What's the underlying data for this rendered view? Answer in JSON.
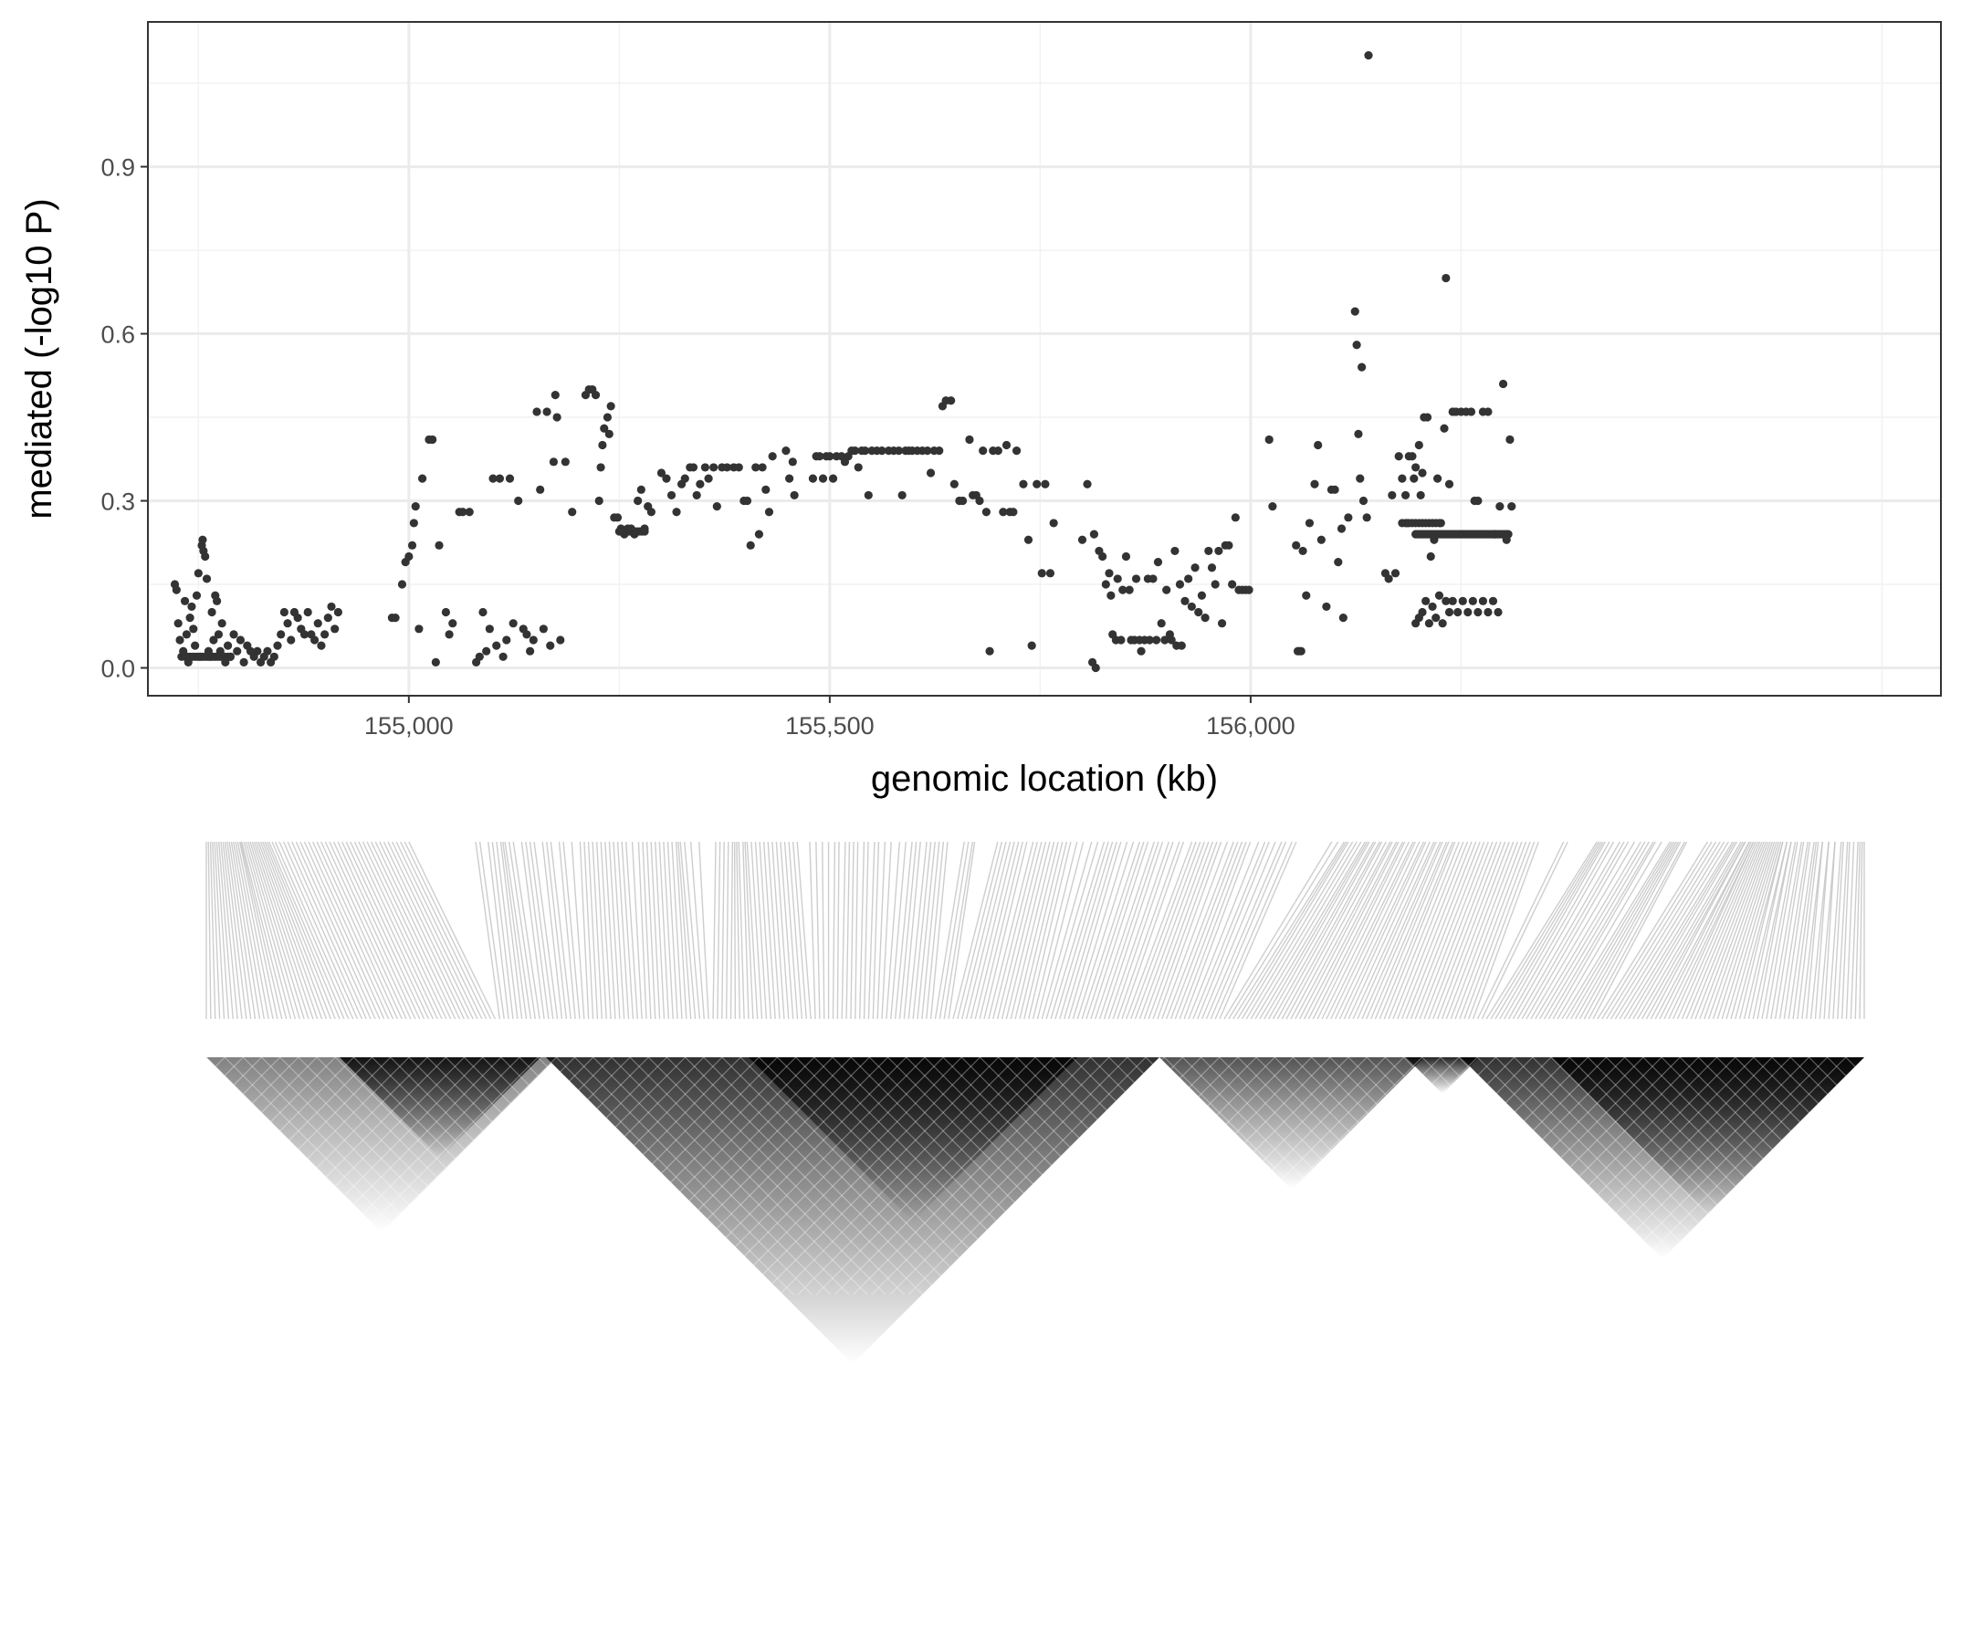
{
  "chart_data": {
    "type": "scatter",
    "xlabel": "genomic location (kb)",
    "ylabel": "mediated (-log10 P)",
    "xlim": [
      154690,
      156820
    ],
    "ylim": [
      -0.05,
      1.16
    ],
    "x_ticks": [
      155000,
      155500,
      156000
    ],
    "x_tick_labels": [
      "155,000",
      "155,500",
      "156,000"
    ],
    "y_ticks": [
      0.0,
      0.3,
      0.6,
      0.9
    ],
    "y_tick_labels": [
      "0.0",
      "0.3",
      "0.6",
      "0.9"
    ],
    "grid": true,
    "point_color": "#333333",
    "points": [
      [
        154722,
        0.15
      ],
      [
        154724,
        0.14
      ],
      [
        154726,
        0.08
      ],
      [
        154728,
        0.05
      ],
      [
        154730,
        0.02
      ],
      [
        154732,
        0.03
      ],
      [
        154734,
        0.12
      ],
      [
        154736,
        0.06
      ],
      [
        154738,
        0.01
      ],
      [
        154740,
        0.09
      ],
      [
        154742,
        0.11
      ],
      [
        154744,
        0.07
      ],
      [
        154746,
        0.04
      ],
      [
        154748,
        0.13
      ],
      [
        154750,
        0.17
      ],
      [
        154752,
        0.02
      ],
      [
        154754,
        0.22
      ],
      [
        154755,
        0.23
      ],
      [
        154756,
        0.21
      ],
      [
        154758,
        0.2
      ],
      [
        154760,
        0.16
      ],
      [
        154762,
        0.03
      ],
      [
        154764,
        0.02
      ],
      [
        154766,
        0.1
      ],
      [
        154768,
        0.05
      ],
      [
        154770,
        0.13
      ],
      [
        154772,
        0.12
      ],
      [
        154774,
        0.06
      ],
      [
        154776,
        0.03
      ],
      [
        154778,
        0.08
      ],
      [
        154780,
        0.02
      ],
      [
        154782,
        0.01
      ],
      [
        154785,
        0.04
      ],
      [
        154788,
        0.02
      ],
      [
        154792,
        0.06
      ],
      [
        154796,
        0.03
      ],
      [
        154800,
        0.05
      ],
      [
        154804,
        0.01
      ],
      [
        154808,
        0.04
      ],
      [
        154812,
        0.03
      ],
      [
        154816,
        0.02
      ],
      [
        154820,
        0.03
      ],
      [
        154824,
        0.01
      ],
      [
        154828,
        0.02
      ],
      [
        154832,
        0.03
      ],
      [
        154836,
        0.01
      ],
      [
        154840,
        0.02
      ],
      [
        154844,
        0.04
      ],
      [
        154848,
        0.06
      ],
      [
        154852,
        0.1
      ],
      [
        154856,
        0.08
      ],
      [
        154860,
        0.05
      ],
      [
        154864,
        0.1
      ],
      [
        154868,
        0.09
      ],
      [
        154872,
        0.07
      ],
      [
        154876,
        0.06
      ],
      [
        154880,
        0.1
      ],
      [
        154884,
        0.06
      ],
      [
        154888,
        0.05
      ],
      [
        154892,
        0.08
      ],
      [
        154896,
        0.04
      ],
      [
        154900,
        0.06
      ],
      [
        154904,
        0.09
      ],
      [
        154908,
        0.11
      ],
      [
        154912,
        0.07
      ],
      [
        154916,
        0.1
      ],
      [
        154980,
        0.09
      ],
      [
        154984,
        0.09
      ],
      [
        154992,
        0.15
      ],
      [
        154996,
        0.19
      ],
      [
        155000,
        0.2
      ],
      [
        155004,
        0.22
      ],
      [
        155006,
        0.26
      ],
      [
        155008,
        0.29
      ],
      [
        155012,
        0.07
      ],
      [
        155016,
        0.34
      ],
      [
        155024,
        0.41
      ],
      [
        155028,
        0.41
      ],
      [
        155032,
        0.01
      ],
      [
        155036,
        0.22
      ],
      [
        155044,
        0.1
      ],
      [
        155048,
        0.06
      ],
      [
        155052,
        0.08
      ],
      [
        155060,
        0.28
      ],
      [
        155064,
        0.28
      ],
      [
        155072,
        0.28
      ],
      [
        155080,
        0.01
      ],
      [
        155084,
        0.02
      ],
      [
        155088,
        0.1
      ],
      [
        155092,
        0.03
      ],
      [
        155096,
        0.07
      ],
      [
        155100,
        0.34
      ],
      [
        155104,
        0.04
      ],
      [
        155108,
        0.34
      ],
      [
        155112,
        0.02
      ],
      [
        155116,
        0.05
      ],
      [
        155120,
        0.34
      ],
      [
        155124,
        0.08
      ],
      [
        155130,
        0.3
      ],
      [
        155136,
        0.07
      ],
      [
        155140,
        0.06
      ],
      [
        155144,
        0.03
      ],
      [
        155148,
        0.05
      ],
      [
        155152,
        0.46
      ],
      [
        155156,
        0.32
      ],
      [
        155160,
        0.07
      ],
      [
        155164,
        0.46
      ],
      [
        155168,
        0.04
      ],
      [
        155172,
        0.37
      ],
      [
        155174,
        0.49
      ],
      [
        155176,
        0.45
      ],
      [
        155180,
        0.05
      ],
      [
        155186,
        0.37
      ],
      [
        155194,
        0.28
      ],
      [
        155210,
        0.49
      ],
      [
        155214,
        0.5
      ],
      [
        155218,
        0.5
      ],
      [
        155222,
        0.49
      ],
      [
        155226,
        0.3
      ],
      [
        155228,
        0.36
      ],
      [
        155230,
        0.4
      ],
      [
        155232,
        0.43
      ],
      [
        155236,
        0.45
      ],
      [
        155238,
        0.42
      ],
      [
        155240,
        0.47
      ],
      [
        155244,
        0.27
      ],
      [
        155248,
        0.27
      ],
      [
        155252,
        0.25
      ],
      [
        155256,
        0.24
      ],
      [
        155260,
        0.25
      ],
      [
        155264,
        0.25
      ],
      [
        155268,
        0.24
      ],
      [
        155272,
        0.3
      ],
      [
        155276,
        0.32
      ],
      [
        155280,
        0.25
      ],
      [
        155284,
        0.29
      ],
      [
        155288,
        0.28
      ],
      [
        155300,
        0.35
      ],
      [
        155306,
        0.34
      ],
      [
        155312,
        0.31
      ],
      [
        155318,
        0.28
      ],
      [
        155324,
        0.33
      ],
      [
        155328,
        0.34
      ],
      [
        155334,
        0.36
      ],
      [
        155338,
        0.36
      ],
      [
        155342,
        0.31
      ],
      [
        155346,
        0.33
      ],
      [
        155352,
        0.36
      ],
      [
        155356,
        0.34
      ],
      [
        155362,
        0.36
      ],
      [
        155366,
        0.29
      ],
      [
        155372,
        0.36
      ],
      [
        155378,
        0.36
      ],
      [
        155386,
        0.36
      ],
      [
        155392,
        0.36
      ],
      [
        155398,
        0.3
      ],
      [
        155402,
        0.3
      ],
      [
        155406,
        0.22
      ],
      [
        155412,
        0.36
      ],
      [
        155416,
        0.24
      ],
      [
        155420,
        0.36
      ],
      [
        155424,
        0.32
      ],
      [
        155428,
        0.28
      ],
      [
        155432,
        0.38
      ],
      [
        155448,
        0.39
      ],
      [
        155452,
        0.34
      ],
      [
        155456,
        0.37
      ],
      [
        155458,
        0.31
      ],
      [
        155480,
        0.34
      ],
      [
        155484,
        0.38
      ],
      [
        155488,
        0.38
      ],
      [
        155492,
        0.34
      ],
      [
        155496,
        0.38
      ],
      [
        155500,
        0.38
      ],
      [
        155504,
        0.34
      ],
      [
        155508,
        0.38
      ],
      [
        155514,
        0.38
      ],
      [
        155518,
        0.37
      ],
      [
        155522,
        0.38
      ],
      [
        155526,
        0.39
      ],
      [
        155530,
        0.39
      ],
      [
        155534,
        0.36
      ],
      [
        155538,
        0.39
      ],
      [
        155542,
        0.39
      ],
      [
        155546,
        0.31
      ],
      [
        155550,
        0.39
      ],
      [
        155556,
        0.39
      ],
      [
        155562,
        0.39
      ],
      [
        155570,
        0.39
      ],
      [
        155576,
        0.39
      ],
      [
        155582,
        0.39
      ],
      [
        155586,
        0.31
      ],
      [
        155590,
        0.39
      ],
      [
        155594,
        0.39
      ],
      [
        155598,
        0.39
      ],
      [
        155604,
        0.39
      ],
      [
        155610,
        0.39
      ],
      [
        155616,
        0.39
      ],
      [
        155620,
        0.35
      ],
      [
        155624,
        0.39
      ],
      [
        155630,
        0.39
      ],
      [
        155634,
        0.47
      ],
      [
        155638,
        0.48
      ],
      [
        155644,
        0.48
      ],
      [
        155648,
        0.33
      ],
      [
        155654,
        0.3
      ],
      [
        155658,
        0.3
      ],
      [
        155666,
        0.41
      ],
      [
        155670,
        0.31
      ],
      [
        155674,
        0.31
      ],
      [
        155678,
        0.3
      ],
      [
        155682,
        0.39
      ],
      [
        155686,
        0.28
      ],
      [
        155690,
        0.03
      ],
      [
        155694,
        0.39
      ],
      [
        155700,
        0.39
      ],
      [
        155706,
        0.28
      ],
      [
        155710,
        0.4
      ],
      [
        155714,
        0.28
      ],
      [
        155718,
        0.28
      ],
      [
        155722,
        0.39
      ],
      [
        155730,
        0.33
      ],
      [
        155736,
        0.23
      ],
      [
        155740,
        0.04
      ],
      [
        155746,
        0.33
      ],
      [
        155752,
        0.17
      ],
      [
        155756,
        0.33
      ],
      [
        155762,
        0.17
      ],
      [
        155766,
        0.26
      ],
      [
        155800,
        0.23
      ],
      [
        155806,
        0.33
      ],
      [
        155812,
        0.01
      ],
      [
        155814,
        0.24
      ],
      [
        155816,
        0.0
      ],
      [
        155820,
        0.21
      ],
      [
        155824,
        0.2
      ],
      [
        155828,
        0.15
      ],
      [
        155832,
        0.17
      ],
      [
        155834,
        0.13
      ],
      [
        155836,
        0.06
      ],
      [
        155840,
        0.05
      ],
      [
        155842,
        0.16
      ],
      [
        155846,
        0.05
      ],
      [
        155848,
        0.14
      ],
      [
        155852,
        0.2
      ],
      [
        155856,
        0.14
      ],
      [
        155858,
        0.05
      ],
      [
        155862,
        0.05
      ],
      [
        155864,
        0.16
      ],
      [
        155868,
        0.05
      ],
      [
        155870,
        0.03
      ],
      [
        155874,
        0.05
      ],
      [
        155878,
        0.16
      ],
      [
        155880,
        0.05
      ],
      [
        155884,
        0.16
      ],
      [
        155888,
        0.05
      ],
      [
        155890,
        0.19
      ],
      [
        155894,
        0.08
      ],
      [
        155898,
        0.05
      ],
      [
        155900,
        0.14
      ],
      [
        155904,
        0.06
      ],
      [
        155906,
        0.05
      ],
      [
        155910,
        0.21
      ],
      [
        155912,
        0.04
      ],
      [
        155916,
        0.15
      ],
      [
        155918,
        0.04
      ],
      [
        155922,
        0.12
      ],
      [
        155926,
        0.16
      ],
      [
        155930,
        0.11
      ],
      [
        155934,
        0.18
      ],
      [
        155938,
        0.1
      ],
      [
        155942,
        0.13
      ],
      [
        155946,
        0.09
      ],
      [
        155950,
        0.21
      ],
      [
        155954,
        0.18
      ],
      [
        155958,
        0.15
      ],
      [
        155962,
        0.21
      ],
      [
        155966,
        0.08
      ],
      [
        155970,
        0.22
      ],
      [
        155974,
        0.22
      ],
      [
        155978,
        0.15
      ],
      [
        155982,
        0.27
      ],
      [
        155986,
        0.14
      ],
      [
        155990,
        0.14
      ],
      [
        155994,
        0.14
      ],
      [
        155998,
        0.14
      ],
      [
        156022,
        0.41
      ],
      [
        156026,
        0.29
      ],
      [
        156054,
        0.22
      ],
      [
        156056,
        0.03
      ],
      [
        156058,
        0.03
      ],
      [
        156060,
        0.03
      ],
      [
        156062,
        0.21
      ],
      [
        156066,
        0.13
      ],
      [
        156070,
        0.26
      ],
      [
        156076,
        0.33
      ],
      [
        156080,
        0.4
      ],
      [
        156084,
        0.23
      ],
      [
        156090,
        0.11
      ],
      [
        156096,
        0.32
      ],
      [
        156100,
        0.32
      ],
      [
        156104,
        0.19
      ],
      [
        156108,
        0.25
      ],
      [
        156110,
        0.09
      ],
      [
        156116,
        0.27
      ],
      [
        156124,
        0.64
      ],
      [
        156126,
        0.58
      ],
      [
        156128,
        0.42
      ],
      [
        156130,
        0.34
      ],
      [
        156132,
        0.54
      ],
      [
        156134,
        0.3
      ],
      [
        156138,
        0.27
      ],
      [
        156140,
        1.1
      ],
      [
        156160,
        0.17
      ],
      [
        156164,
        0.16
      ],
      [
        156168,
        0.31
      ],
      [
        156172,
        0.17
      ],
      [
        156176,
        0.38
      ],
      [
        156180,
        0.34
      ],
      [
        156184,
        0.31
      ],
      [
        156186,
        0.26
      ],
      [
        156188,
        0.38
      ],
      [
        156192,
        0.38
      ],
      [
        156194,
        0.34
      ],
      [
        156196,
        0.36
      ],
      [
        156200,
        0.4
      ],
      [
        156202,
        0.31
      ],
      [
        156204,
        0.35
      ],
      [
        156206,
        0.45
      ],
      [
        156210,
        0.45
      ],
      [
        156214,
        0.2
      ],
      [
        156218,
        0.23
      ],
      [
        156222,
        0.34
      ],
      [
        156226,
        0.26
      ],
      [
        156230,
        0.43
      ],
      [
        156232,
        0.7
      ],
      [
        156236,
        0.33
      ],
      [
        156240,
        0.46
      ],
      [
        156244,
        0.46
      ],
      [
        156250,
        0.46
      ],
      [
        156256,
        0.46
      ],
      [
        156262,
        0.46
      ],
      [
        156266,
        0.3
      ],
      [
        156270,
        0.3
      ],
      [
        156276,
        0.46
      ],
      [
        156282,
        0.46
      ],
      [
        156290,
        0.24
      ],
      [
        156296,
        0.29
      ],
      [
        156300,
        0.51
      ],
      [
        156304,
        0.23
      ],
      [
        156306,
        0.24
      ],
      [
        156308,
        0.41
      ],
      [
        156310,
        0.29
      ],
      [
        156196,
        0.08
      ],
      [
        156200,
        0.09
      ],
      [
        156204,
        0.1
      ],
      [
        156208,
        0.12
      ],
      [
        156212,
        0.08
      ],
      [
        156216,
        0.11
      ],
      [
        156220,
        0.09
      ],
      [
        156224,
        0.13
      ],
      [
        156228,
        0.08
      ],
      [
        156232,
        0.12
      ],
      [
        156236,
        0.1
      ],
      [
        156240,
        0.12
      ],
      [
        156246,
        0.1
      ],
      [
        156252,
        0.12
      ],
      [
        156258,
        0.1
      ],
      [
        156264,
        0.12
      ],
      [
        156270,
        0.1
      ],
      [
        156276,
        0.12
      ],
      [
        156282,
        0.1
      ],
      [
        156288,
        0.12
      ],
      [
        156294,
        0.1
      ]
    ],
    "point_runs": [
      [
        156196,
        156304,
        0.24,
        2.5
      ],
      [
        156180,
        156226,
        0.26,
        4
      ],
      [
        154734,
        154790,
        0.02,
        3
      ],
      [
        155250,
        155280,
        0.245,
        3
      ]
    ]
  }
}
